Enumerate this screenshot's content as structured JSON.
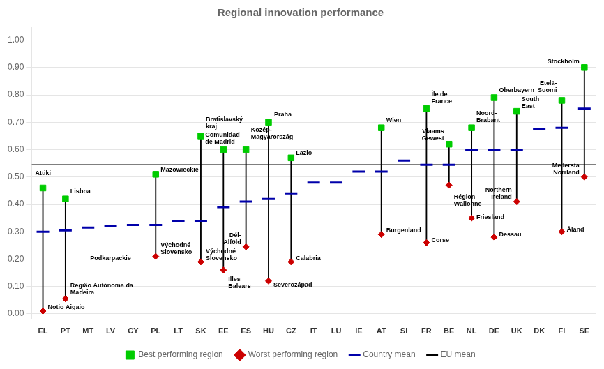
{
  "chart_data": {
    "type": "range",
    "title": "Regional innovation performance",
    "categories": [
      "EL",
      "PT",
      "MT",
      "LV",
      "CY",
      "PL",
      "LT",
      "SK",
      "EE",
      "ES",
      "HU",
      "CZ",
      "IT",
      "LU",
      "IE",
      "AT",
      "SI",
      "FR",
      "BE",
      "NL",
      "DE",
      "UK",
      "DK",
      "FI",
      "SE"
    ],
    "series": [
      {
        "name": "Best performing region",
        "type": "scatter",
        "marker": "square",
        "color": "#00cc00",
        "values": [
          0.46,
          0.42,
          null,
          null,
          null,
          0.51,
          null,
          0.65,
          0.6,
          0.6,
          0.7,
          0.57,
          null,
          null,
          null,
          0.68,
          null,
          0.75,
          0.62,
          0.68,
          0.79,
          0.74,
          null,
          0.78,
          0.9
        ],
        "point_labels": [
          "Attiki",
          "Lisboa",
          null,
          null,
          null,
          "Mazowieckie",
          null,
          "Bratislavský\nkraj",
          "Comunidad\nde Madrid",
          "Közép-\nMagyarország",
          "Praha",
          "Lazio",
          null,
          null,
          null,
          "Wien",
          null,
          "Île de\nFrance",
          "Vlaams\nGewest",
          "Noord-\nBrabant",
          "Oberbayern",
          "South\nEast",
          null,
          "Etelä-\nSuomi",
          "Stockholm"
        ]
      },
      {
        "name": "Country mean",
        "type": "scatter",
        "marker": "dash",
        "color": "#0000aa",
        "values": [
          0.3,
          0.305,
          0.315,
          0.32,
          0.325,
          0.325,
          0.34,
          0.34,
          0.39,
          0.41,
          0.42,
          0.44,
          0.48,
          0.48,
          0.52,
          0.52,
          0.56,
          0.545,
          0.545,
          0.6,
          0.6,
          0.6,
          0.675,
          0.68,
          0.75
        ]
      },
      {
        "name": "Worst performing region",
        "type": "scatter",
        "marker": "diamond",
        "color": "#cc0000",
        "values": [
          0.01,
          0.055,
          null,
          null,
          null,
          0.21,
          null,
          0.19,
          0.16,
          0.245,
          0.12,
          0.19,
          null,
          null,
          null,
          0.29,
          null,
          0.26,
          0.47,
          0.35,
          0.28,
          0.41,
          null,
          0.3,
          0.5
        ],
        "point_labels": [
          "Notio Aigaio",
          "Região Autónoma da\nMadeira",
          null,
          null,
          null,
          "Východné\nSlovensko",
          null,
          "Východné\nSlovensko",
          "Illes\nBalears",
          "Dél-\nAlföld",
          "Severozápad",
          "Calabria",
          null,
          null,
          null,
          "Burgenland",
          null,
          "Corse",
          "Région\nWallonne",
          "Friesland",
          "Dessau",
          "Northern\nIreland",
          null,
          "Åland",
          "Mellersta\nNorrland"
        ]
      }
    ],
    "reference_line": {
      "name": "EU mean",
      "value": 0.545,
      "color": "#000000"
    },
    "annotations": [
      {
        "text": "Podkarpackie",
        "x": "MT",
        "y": 0.19
      }
    ],
    "ylim": [
      -0.02,
      1.05
    ],
    "yticks": [
      {
        "value": 0,
        "label": "0.00"
      },
      {
        "value": 0.1,
        "label": "0.10"
      },
      {
        "value": 0.2,
        "label": "0.20"
      },
      {
        "value": 0.3,
        "label": "0.30"
      },
      {
        "value": 0.4,
        "label": "0.40"
      },
      {
        "value": 0.5,
        "label": "0.50"
      },
      {
        "value": 0.6,
        "label": "0.60"
      },
      {
        "value": 0.7,
        "label": "0.70"
      },
      {
        "value": 0.8,
        "label": "0.80"
      },
      {
        "value": 0.9,
        "label": "0.90"
      },
      {
        "value": 1,
        "label": "1.00"
      }
    ],
    "grid": "y",
    "legend": "bottom"
  }
}
